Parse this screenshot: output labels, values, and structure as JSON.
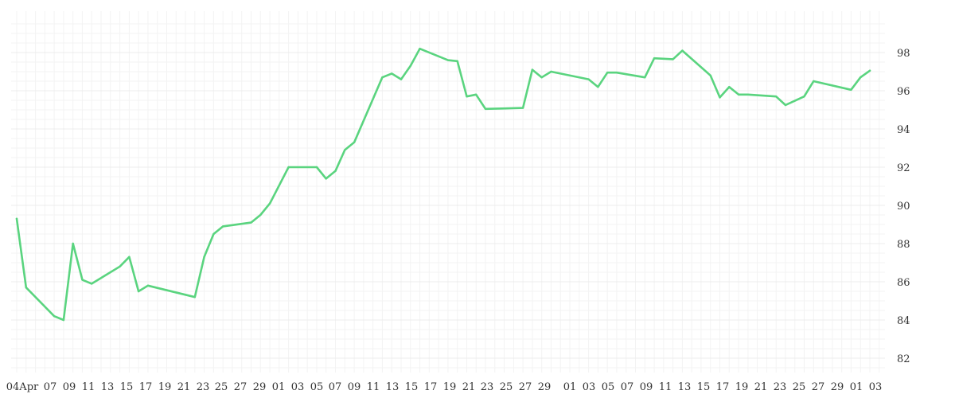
{
  "chart_data": {
    "type": "line",
    "title": "",
    "xlabel": "",
    "ylabel": "",
    "ylim": [
      81,
      99.5
    ],
    "y_axis_position": "right",
    "y_ticks": [
      82,
      84,
      86,
      88,
      90,
      92,
      94,
      96,
      98
    ],
    "x_tick_labels": [
      "04Apr",
      "07",
      "09",
      "11",
      "13",
      "15",
      "17",
      "19",
      "21",
      "23",
      "25",
      "27",
      "29",
      "01",
      "03",
      "05",
      "07",
      "09",
      "11",
      "13",
      "15",
      "17",
      "19",
      "21",
      "23",
      "25",
      "27",
      "29",
      "01",
      "03",
      "05",
      "07",
      "09",
      "11",
      "13",
      "15",
      "17",
      "19",
      "21",
      "23",
      "25",
      "27",
      "29",
      "01",
      "03"
    ],
    "grid": true,
    "legend": "none",
    "line_color": "#5ad47f",
    "grid_color": "#ececec",
    "series": [
      {
        "name": "",
        "x": [
          "2024-04-04",
          "2024-04-05",
          "2024-04-08",
          "2024-04-09",
          "2024-04-10",
          "2024-04-11",
          "2024-04-12",
          "2024-04-15",
          "2024-04-16",
          "2024-04-17",
          "2024-04-18",
          "2024-04-23",
          "2024-04-24",
          "2024-04-25",
          "2024-04-26",
          "2024-04-29",
          "2024-04-30",
          "2024-05-01",
          "2024-05-03",
          "2024-05-06",
          "2024-05-07",
          "2024-05-08",
          "2024-05-09",
          "2024-05-10",
          "2024-05-13",
          "2024-05-14",
          "2024-05-15",
          "2024-05-16",
          "2024-05-17",
          "2024-05-20",
          "2024-05-21",
          "2024-05-22",
          "2024-05-23",
          "2024-05-24",
          "2024-05-28",
          "2024-05-29",
          "2024-05-30",
          "2024-05-31",
          "2024-06-04",
          "2024-06-05",
          "2024-06-06",
          "2024-06-07",
          "2024-06-10",
          "2024-06-11",
          "2024-06-13",
          "2024-06-14",
          "2024-06-17",
          "2024-06-18",
          "2024-06-19",
          "2024-06-20",
          "2024-06-21",
          "2024-06-24",
          "2024-06-25",
          "2024-06-27",
          "2024-06-28",
          "2024-07-02",
          "2024-07-03",
          "2024-07-04"
        ],
        "y": [
          89.3,
          85.7,
          84.2,
          84.0,
          88.0,
          86.1,
          85.9,
          86.8,
          87.3,
          85.5,
          85.8,
          85.2,
          87.3,
          88.5,
          88.9,
          89.1,
          89.5,
          90.1,
          92.0,
          92.0,
          91.4,
          91.8,
          92.9,
          93.3,
          96.7,
          96.9,
          96.6,
          97.3,
          98.2,
          97.6,
          97.55,
          95.7,
          95.8,
          95.05,
          95.1,
          97.1,
          96.7,
          97.0,
          96.6,
          96.2,
          96.95,
          96.95,
          96.7,
          97.7,
          97.65,
          98.1,
          96.8,
          95.65,
          96.2,
          95.8,
          95.8,
          95.7,
          95.25,
          95.7,
          96.5,
          96.05,
          96.7,
          97.05
        ]
      }
    ]
  }
}
